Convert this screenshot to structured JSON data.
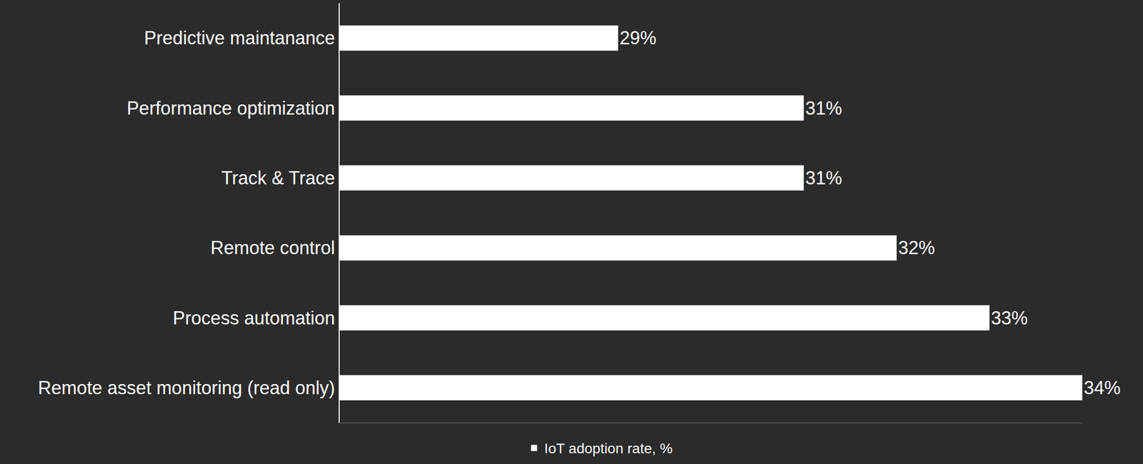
{
  "chart_data": {
    "type": "bar",
    "orientation": "horizontal",
    "categories": [
      "Predictive maintanance",
      "Performance optimization",
      "Track & Trace",
      "Remote control",
      "Process automation",
      "Remote asset monitoring (read only)"
    ],
    "series": [
      {
        "name": "IoT adoption rate, %",
        "color": "#ffffff",
        "values": [
          29,
          31,
          31,
          32,
          33,
          34
        ],
        "value_labels": [
          "29%",
          "31%",
          "31%",
          "32%",
          "33%",
          "34%"
        ]
      }
    ],
    "xlim": [
      26,
      34
    ],
    "data_labels": true,
    "tick_labels": "y",
    "grid": false,
    "legend": "bottom"
  }
}
